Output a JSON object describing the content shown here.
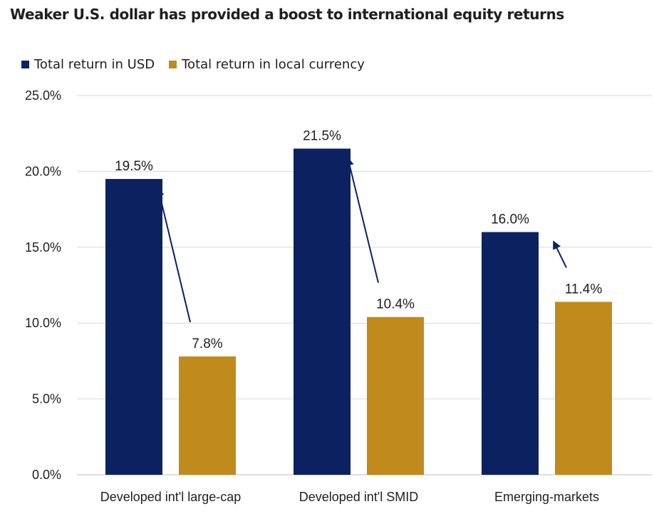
{
  "chart_data": {
    "type": "bar",
    "title": "Weaker U.S. dollar has provided a boost to international equity returns",
    "categories": [
      "Developed int'l large-cap",
      "Developed int'l SMID",
      "Emerging-markets"
    ],
    "series": [
      {
        "name": "Total return in USD",
        "values": [
          19.5,
          21.5,
          16.0
        ],
        "labels": [
          "19.5%",
          "21.5%",
          "16.0%"
        ],
        "color": "#0c2260"
      },
      {
        "name": "Total return in local currency",
        "values": [
          7.8,
          10.4,
          11.4
        ],
        "labels": [
          "7.8%",
          "10.4%",
          "11.4%"
        ],
        "color": "#c18a1c"
      }
    ],
    "ylim": [
      0,
      25
    ],
    "yticks": [
      0,
      5,
      10,
      15,
      20,
      25
    ],
    "ytick_labels": [
      "0.0%",
      "5.0%",
      "10.0%",
      "15.0%",
      "20.0%",
      "25.0%"
    ],
    "xlabel": "",
    "ylabel": "",
    "grid": true,
    "legend": "top-left",
    "annotations": [
      {
        "type": "arrow",
        "from_series": "Total return in local currency",
        "to_series": "Total return in USD",
        "category": "Developed int'l large-cap"
      },
      {
        "type": "arrow",
        "from_series": "Total return in local currency",
        "to_series": "Total return in USD",
        "category": "Developed int'l SMID"
      },
      {
        "type": "arrow",
        "from_series": "Total return in local currency",
        "to_series": "Total return in USD",
        "category": "Emerging-markets"
      }
    ],
    "colors": {
      "grid": "#d9d9d9",
      "axis": "#bfbfbf",
      "text": "#1f1f1f",
      "arrow": "#0c2260"
    }
  }
}
